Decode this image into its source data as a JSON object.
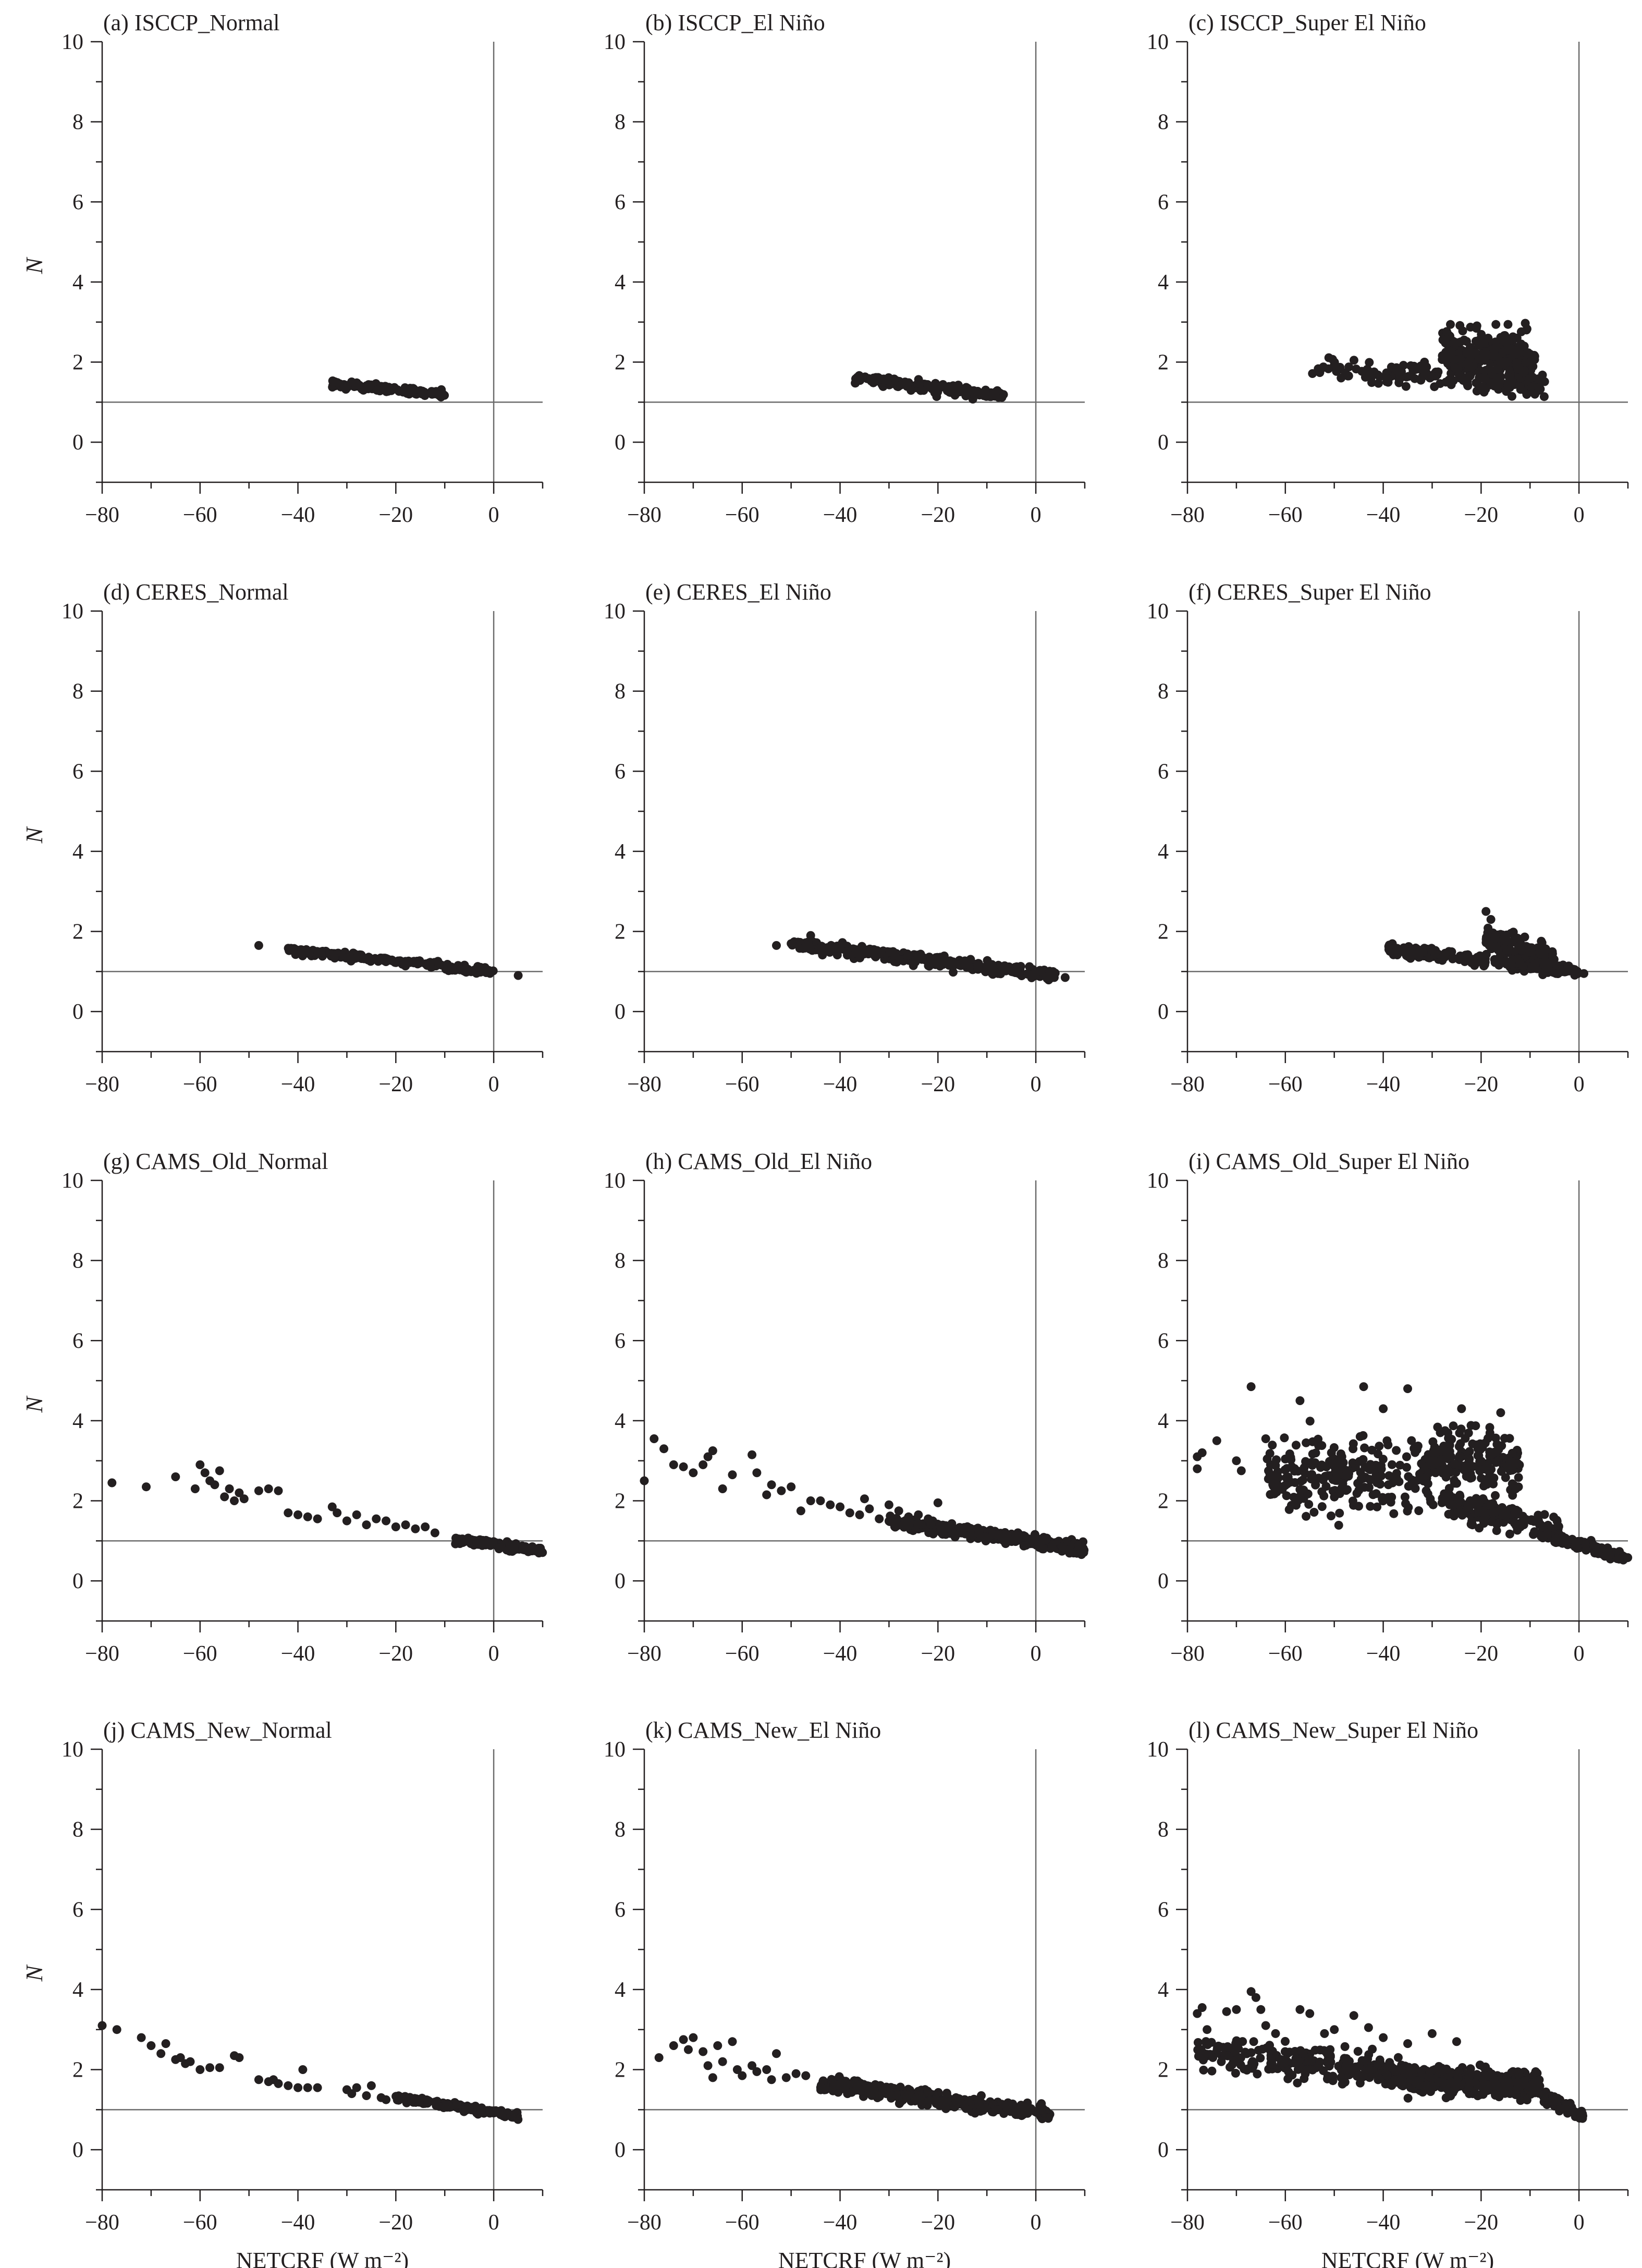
{
  "figure": {
    "x_axis_label": "NETCRF (W m⁻²)",
    "y_axis_label": "N"
  },
  "chart_data": [
    {
      "type": "scatter",
      "title": "(a) ISCCP_Normal",
      "xlim": [
        -80,
        10
      ],
      "ylim": [
        -1,
        10
      ],
      "xticks": [
        -80,
        -60,
        -40,
        -20,
        0
      ],
      "yticks": [
        0,
        2,
        4,
        6,
        8,
        10
      ],
      "ref_x": 0,
      "ref_y": 1,
      "cloud": [
        {
          "x": [
            -33,
            -10
          ],
          "y": [
            1.45,
            1.2
          ],
          "spread": 0.08,
          "n": 120
        }
      ]
    },
    {
      "type": "scatter",
      "title": "(b) ISCCP_El Niño",
      "xlim": [
        -80,
        10
      ],
      "ylim": [
        -1,
        10
      ],
      "xticks": [
        -80,
        -60,
        -40,
        -20,
        0
      ],
      "yticks": [
        0,
        2,
        4,
        6,
        8,
        10
      ],
      "ref_x": 0,
      "ref_y": 1,
      "cloud": [
        {
          "x": [
            -37,
            -6
          ],
          "y": [
            1.6,
            1.15
          ],
          "spread": 0.12,
          "n": 160
        }
      ]
    },
    {
      "type": "scatter",
      "title": "(c) ISCCP_Super El Niño",
      "xlim": [
        -80,
        10
      ],
      "ylim": [
        -1,
        10
      ],
      "xticks": [
        -80,
        -60,
        -40,
        -20,
        0
      ],
      "yticks": [
        0,
        2,
        4,
        6,
        8,
        10
      ],
      "ref_x": 0,
      "ref_y": 1,
      "cloud": [
        {
          "x": [
            -55,
            -7
          ],
          "y": [
            1.9,
            1.4
          ],
          "spread": 0.25,
          "n": 160
        },
        {
          "x": [
            -28,
            -9
          ],
          "y": [
            2.3,
            2.0
          ],
          "spread": 0.6,
          "n": 260
        }
      ]
    },
    {
      "type": "scatter",
      "title": "(d) CERES_Normal",
      "xlim": [
        -80,
        10
      ],
      "ylim": [
        -1,
        10
      ],
      "xticks": [
        -80,
        -60,
        -40,
        -20,
        0
      ],
      "yticks": [
        0,
        2,
        4,
        6,
        8,
        10
      ],
      "ref_x": 0,
      "ref_y": 1,
      "cloud": [
        {
          "x": [
            -42,
            0
          ],
          "y": [
            1.55,
            1.0
          ],
          "spread": 0.08,
          "n": 200
        }
      ],
      "points": [
        [
          -48,
          1.65
        ],
        [
          5,
          0.9
        ]
      ]
    },
    {
      "type": "scatter",
      "title": "(e) CERES_El Niño",
      "xlim": [
        -80,
        10
      ],
      "ylim": [
        -1,
        10
      ],
      "xticks": [
        -80,
        -60,
        -40,
        -20,
        0
      ],
      "yticks": [
        0,
        2,
        4,
        6,
        8,
        10
      ],
      "ref_x": 0,
      "ref_y": 1,
      "cloud": [
        {
          "x": [
            -50,
            4
          ],
          "y": [
            1.7,
            0.9
          ],
          "spread": 0.12,
          "n": 300
        }
      ],
      "points": [
        [
          -53,
          1.65
        ],
        [
          -46,
          1.9
        ],
        [
          6,
          0.85
        ]
      ]
    },
    {
      "type": "scatter",
      "title": "(f) CERES_Super El Niño",
      "xlim": [
        -80,
        10
      ],
      "ylim": [
        -1,
        10
      ],
      "xticks": [
        -80,
        -60,
        -40,
        -20,
        0
      ],
      "yticks": [
        0,
        2,
        4,
        6,
        8,
        10
      ],
      "ref_x": 0,
      "ref_y": 1,
      "cloud": [
        {
          "x": [
            -39,
            0
          ],
          "y": [
            1.55,
            1.0
          ],
          "spread": 0.12,
          "n": 240
        },
        {
          "x": [
            -19,
            -5
          ],
          "y": [
            1.8,
            1.3
          ],
          "spread": 0.3,
          "n": 140
        }
      ],
      "points": [
        [
          -19,
          2.5
        ],
        [
          -18,
          2.3
        ],
        [
          1,
          0.95
        ]
      ]
    },
    {
      "type": "scatter",
      "title": "(g) CAMS_Old_Normal",
      "xlim": [
        -80,
        10
      ],
      "ylim": [
        -1,
        10
      ],
      "xticks": [
        -80,
        -60,
        -40,
        -20,
        0
      ],
      "yticks": [
        0,
        2,
        4,
        6,
        8,
        10
      ],
      "ref_x": 0,
      "ref_y": 1,
      "cloud": [
        {
          "x": [
            -8,
            10
          ],
          "y": [
            1.05,
            0.75
          ],
          "spread": 0.08,
          "n": 120
        }
      ],
      "points": [
        [
          -78,
          2.45
        ],
        [
          -71,
          2.35
        ],
        [
          -65,
          2.6
        ],
        [
          -61,
          2.3
        ],
        [
          -60,
          2.9
        ],
        [
          -59,
          2.7
        ],
        [
          -58,
          2.5
        ],
        [
          -57,
          2.4
        ],
        [
          -56,
          2.75
        ],
        [
          -55,
          2.1
        ],
        [
          -54,
          2.3
        ],
        [
          -53,
          2.0
        ],
        [
          -52,
          2.2
        ],
        [
          -51,
          2.05
        ],
        [
          -48,
          2.25
        ],
        [
          -46,
          2.3
        ],
        [
          -44,
          2.25
        ],
        [
          -42,
          1.7
        ],
        [
          -40,
          1.65
        ],
        [
          -38,
          1.6
        ],
        [
          -36,
          1.55
        ],
        [
          -33,
          1.85
        ],
        [
          -32,
          1.7
        ],
        [
          -30,
          1.5
        ],
        [
          -28,
          1.65
        ],
        [
          -26,
          1.4
        ],
        [
          -24,
          1.55
        ],
        [
          -22,
          1.5
        ],
        [
          -20,
          1.35
        ],
        [
          -18,
          1.4
        ],
        [
          -16,
          1.3
        ],
        [
          -14,
          1.35
        ],
        [
          -12,
          1.2
        ]
      ]
    },
    {
      "type": "scatter",
      "title": "(h) CAMS_Old_El Niño",
      "xlim": [
        -80,
        10
      ],
      "ylim": [
        -1,
        10
      ],
      "xticks": [
        -80,
        -60,
        -40,
        -20,
        0
      ],
      "yticks": [
        0,
        2,
        4,
        6,
        8,
        10
      ],
      "ref_x": 0,
      "ref_y": 1,
      "cloud": [
        {
          "x": [
            -30,
            10
          ],
          "y": [
            1.5,
            0.8
          ],
          "spread": 0.12,
          "n": 320
        }
      ],
      "points": [
        [
          -80,
          2.5
        ],
        [
          -78,
          3.55
        ],
        [
          -76,
          3.3
        ],
        [
          -74,
          2.9
        ],
        [
          -72,
          2.85
        ],
        [
          -70,
          2.7
        ],
        [
          -68,
          2.9
        ],
        [
          -67,
          3.1
        ],
        [
          -66,
          3.25
        ],
        [
          -64,
          2.3
        ],
        [
          -62,
          2.65
        ],
        [
          -58,
          3.15
        ],
        [
          -57,
          2.7
        ],
        [
          -55,
          2.15
        ],
        [
          -54,
          2.4
        ],
        [
          -52,
          2.25
        ],
        [
          -50,
          2.35
        ],
        [
          -48,
          1.75
        ],
        [
          -46,
          2.0
        ],
        [
          -44,
          2.0
        ],
        [
          -42,
          1.9
        ],
        [
          -40,
          1.85
        ],
        [
          -38,
          1.7
        ],
        [
          -36,
          1.65
        ],
        [
          -35,
          2.05
        ],
        [
          -34,
          1.8
        ],
        [
          -32,
          1.55
        ],
        [
          -30,
          1.9
        ],
        [
          -28,
          1.75
        ],
        [
          -26,
          1.6
        ],
        [
          -24,
          1.65
        ],
        [
          -22,
          1.55
        ],
        [
          -20,
          1.95
        ]
      ]
    },
    {
      "type": "scatter",
      "title": "(i) CAMS_Old_Super El Niño",
      "xlim": [
        -80,
        10
      ],
      "ylim": [
        -1,
        10
      ],
      "xticks": [
        -80,
        -60,
        -40,
        -20,
        0
      ],
      "yticks": [
        0,
        2,
        4,
        6,
        8,
        10
      ],
      "ref_x": 0,
      "ref_y": 1,
      "cloud": [
        {
          "x": [
            -64,
            -30
          ],
          "y": [
            2.65,
            2.65
          ],
          "spread": 0.8,
          "n": 240
        },
        {
          "x": [
            -30,
            -12
          ],
          "y": [
            3.1,
            3.0
          ],
          "spread": 0.7,
          "n": 170
        },
        {
          "x": [
            -28,
            -4
          ],
          "y": [
            2.0,
            1.25
          ],
          "spread": 0.28,
          "n": 170
        },
        {
          "x": [
            -5,
            10
          ],
          "y": [
            1.1,
            0.55
          ],
          "spread": 0.1,
          "n": 110
        }
      ],
      "points": [
        [
          -78,
          3.1
        ],
        [
          -77,
          3.2
        ],
        [
          -78,
          2.8
        ],
        [
          -74,
          3.5
        ],
        [
          -70,
          3.0
        ],
        [
          -69,
          2.75
        ],
        [
          -67,
          4.85
        ],
        [
          -64,
          3.55
        ],
        [
          -57,
          4.5
        ],
        [
          -44,
          4.85
        ],
        [
          -35,
          4.8
        ],
        [
          -40,
          4.3
        ],
        [
          -24,
          4.3
        ],
        [
          -16,
          4.2
        ]
      ]
    },
    {
      "type": "scatter",
      "title": "(j) CAMS_New_Normal",
      "xlim": [
        -80,
        10
      ],
      "ylim": [
        -1,
        10
      ],
      "xticks": [
        -80,
        -60,
        -40,
        -20,
        0
      ],
      "yticks": [
        0,
        2,
        4,
        6,
        8,
        10
      ],
      "ref_x": 0,
      "ref_y": 1,
      "cloud": [
        {
          "x": [
            -20,
            5
          ],
          "y": [
            1.3,
            0.85
          ],
          "spread": 0.07,
          "n": 180
        }
      ],
      "points": [
        [
          -80,
          3.1
        ],
        [
          -77,
          3.0
        ],
        [
          -72,
          2.8
        ],
        [
          -70,
          2.6
        ],
        [
          -68,
          2.4
        ],
        [
          -67,
          2.65
        ],
        [
          -65,
          2.25
        ],
        [
          -64,
          2.3
        ],
        [
          -63,
          2.15
        ],
        [
          -62,
          2.2
        ],
        [
          -60,
          2.0
        ],
        [
          -58,
          2.05
        ],
        [
          -56,
          2.05
        ],
        [
          -53,
          2.35
        ],
        [
          -52,
          2.3
        ],
        [
          -48,
          1.75
        ],
        [
          -46,
          1.7
        ],
        [
          -45,
          1.75
        ],
        [
          -44,
          1.65
        ],
        [
          -42,
          1.6
        ],
        [
          -40,
          1.55
        ],
        [
          -39,
          2.0
        ],
        [
          -38,
          1.55
        ],
        [
          -36,
          1.55
        ],
        [
          -30,
          1.5
        ],
        [
          -29,
          1.4
        ],
        [
          -28,
          1.55
        ],
        [
          -26,
          1.35
        ],
        [
          -25,
          1.6
        ],
        [
          -23,
          1.3
        ],
        [
          -22,
          1.25
        ]
      ]
    },
    {
      "type": "scatter",
      "title": "(k) CAMS_New_El Niño",
      "xlim": [
        -80,
        10
      ],
      "ylim": [
        -1,
        10
      ],
      "xticks": [
        -80,
        -60,
        -40,
        -20,
        0
      ],
      "yticks": [
        0,
        2,
        4,
        6,
        8,
        10
      ],
      "ref_x": 0,
      "ref_y": 1,
      "cloud": [
        {
          "x": [
            -44,
            3
          ],
          "y": [
            1.65,
            0.9
          ],
          "spread": 0.15,
          "n": 380
        }
      ],
      "points": [
        [
          -77,
          2.3
        ],
        [
          -74,
          2.6
        ],
        [
          -72,
          2.75
        ],
        [
          -71,
          2.5
        ],
        [
          -70,
          2.8
        ],
        [
          -68,
          2.45
        ],
        [
          -67,
          2.1
        ],
        [
          -66,
          1.8
        ],
        [
          -65,
          2.6
        ],
        [
          -64,
          2.2
        ],
        [
          -62,
          2.7
        ],
        [
          -61,
          2.0
        ],
        [
          -60,
          1.85
        ],
        [
          -58,
          2.1
        ],
        [
          -57,
          1.95
        ],
        [
          -55,
          2.0
        ],
        [
          -54,
          1.75
        ],
        [
          -53,
          2.4
        ],
        [
          -51,
          1.8
        ],
        [
          -49,
          1.9
        ],
        [
          -47,
          1.85
        ]
      ]
    },
    {
      "type": "scatter",
      "title": "(l) CAMS_New_Super El Niño",
      "xlim": [
        -80,
        10
      ],
      "ylim": [
        -1,
        10
      ],
      "xticks": [
        -80,
        -60,
        -40,
        -20,
        0
      ],
      "yticks": [
        0,
        2,
        4,
        6,
        8,
        10
      ],
      "ref_x": 0,
      "ref_y": 1,
      "cloud": [
        {
          "x": [
            -78,
            -40
          ],
          "y": [
            2.45,
            2.0
          ],
          "spread": 0.35,
          "n": 200
        },
        {
          "x": [
            -40,
            -8
          ],
          "y": [
            1.85,
            1.6
          ],
          "spread": 0.28,
          "n": 420
        },
        {
          "x": [
            -8,
            1
          ],
          "y": [
            1.4,
            0.85
          ],
          "spread": 0.12,
          "n": 60
        }
      ],
      "points": [
        [
          -78,
          3.4
        ],
        [
          -77,
          3.55
        ],
        [
          -76,
          3.0
        ],
        [
          -72,
          3.45
        ],
        [
          -70,
          3.5
        ],
        [
          -67,
          3.95
        ],
        [
          -66,
          3.8
        ],
        [
          -65,
          3.5
        ],
        [
          -64,
          3.1
        ],
        [
          -62,
          2.9
        ],
        [
          -57,
          3.5
        ],
        [
          -55,
          3.4
        ],
        [
          -52,
          2.9
        ],
        [
          -50,
          3.0
        ],
        [
          -46,
          3.35
        ],
        [
          -43,
          3.05
        ],
        [
          -40,
          2.8
        ],
        [
          -35,
          2.65
        ],
        [
          -30,
          2.9
        ],
        [
          -25,
          2.7
        ]
      ]
    }
  ]
}
